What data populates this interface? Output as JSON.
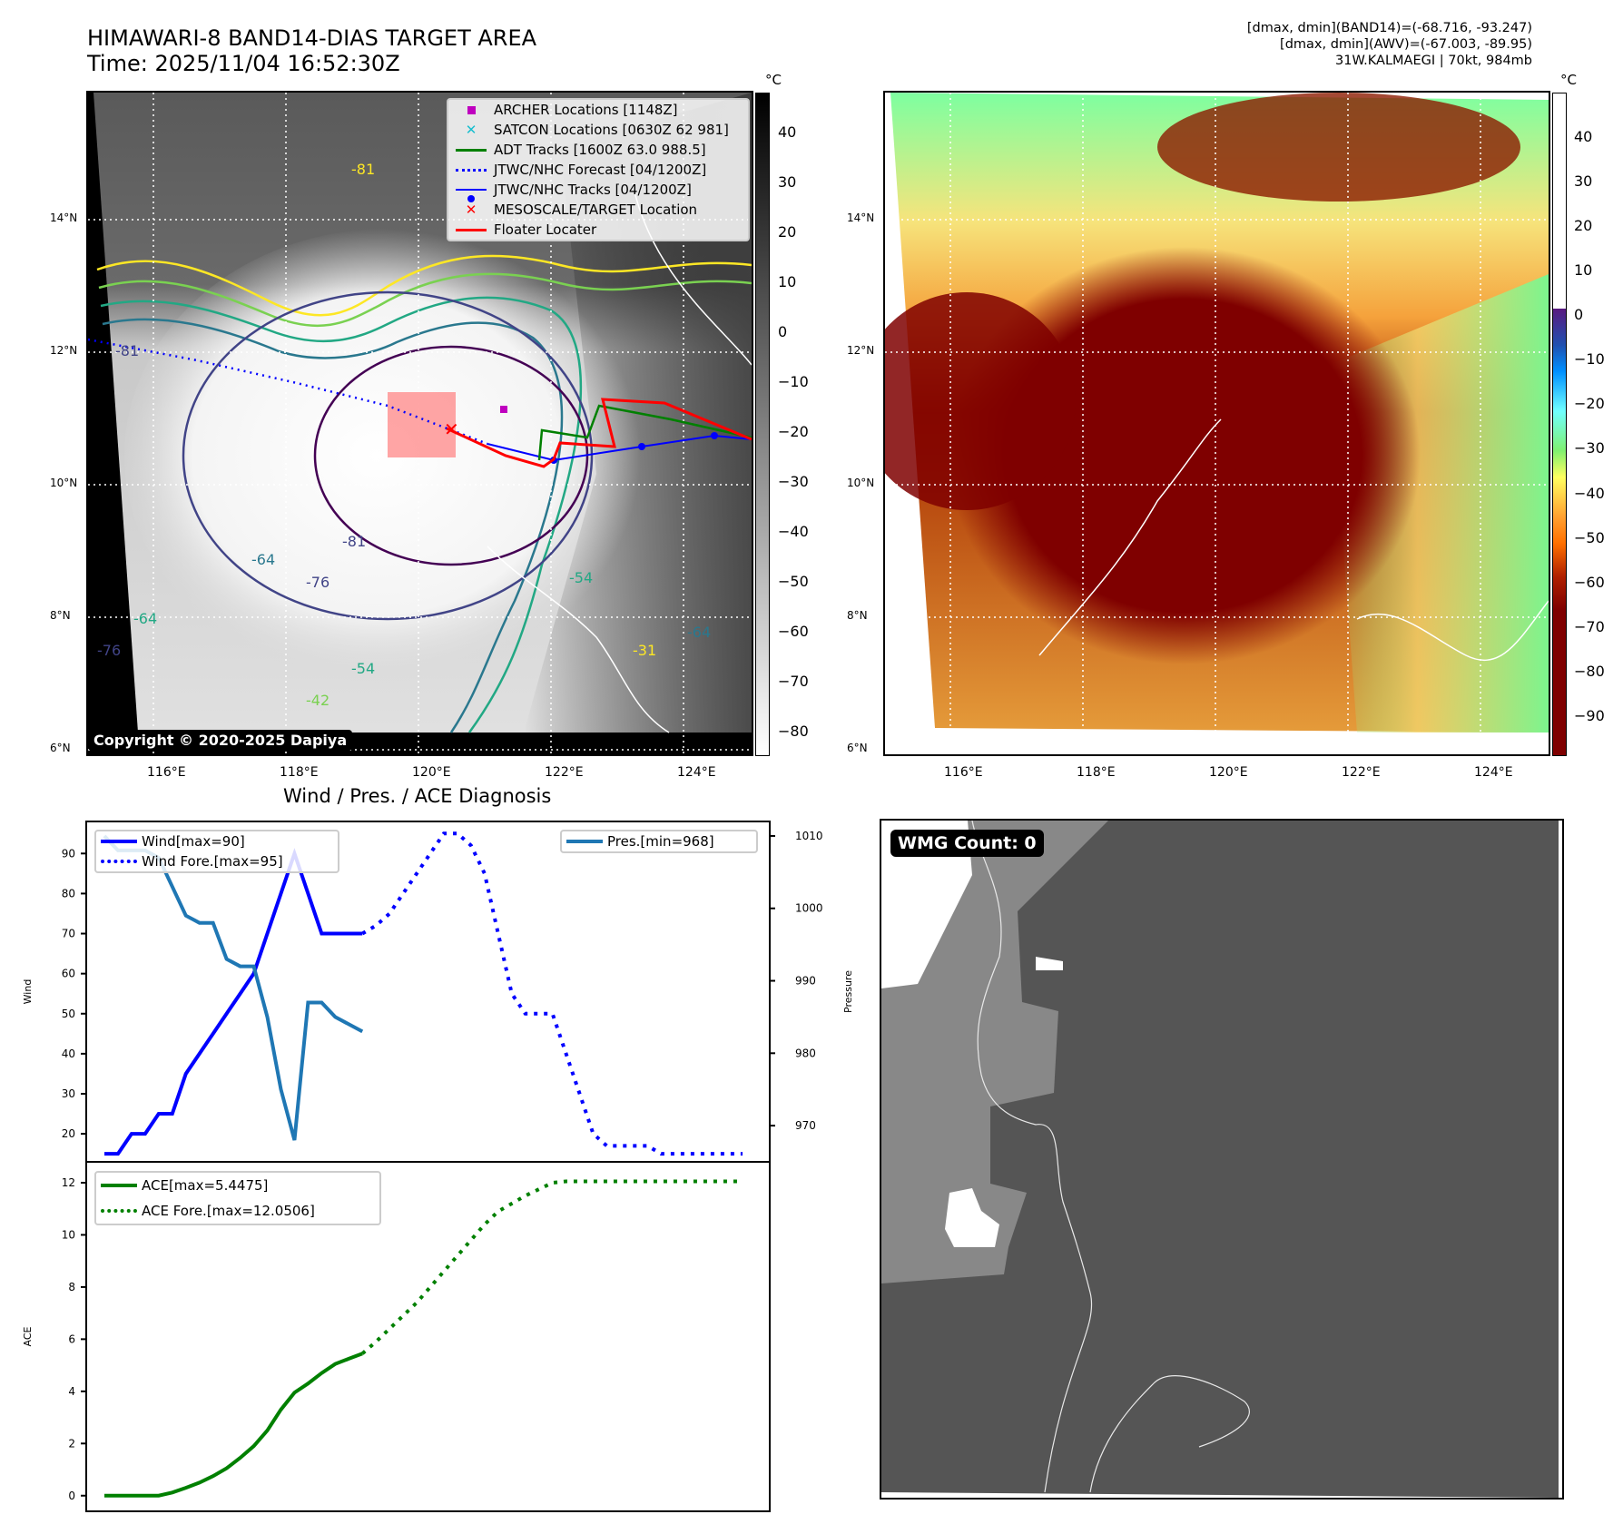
{
  "header": {
    "title_line1": "HIMAWARI-8 BAND14-DIAS TARGET AREA",
    "title_line2": "Time: 2025/11/04 16:52:30Z",
    "info_line1": "[dmax, dmin](BAND14)=(-68.716, -93.247)",
    "info_line2": "[dmax, dmin](AWV)=(-67.003, -89.95)",
    "info_line3": "31W.KALMAEGI | 70kt, 984mb"
  },
  "map_left": {
    "lat_ticks": [
      "14°N",
      "12°N",
      "10°N",
      "8°N",
      "6°N"
    ],
    "lon_ticks": [
      "116°E",
      "118°E",
      "120°E",
      "122°E",
      "124°E"
    ],
    "copyright": "Copyright © 2020-2025 Dapiya",
    "contour_labels": [
      "-81",
      "-81",
      "-64",
      "-76",
      "-81",
      "-64",
      "-76",
      "-54",
      "-42",
      "-54",
      "-31",
      "-64"
    ],
    "legend": [
      {
        "label": "ARCHER Locations [1148Z]",
        "color": "#bf00bf",
        "marker": "square"
      },
      {
        "label": "SATCON Locations [0630Z 62 981]",
        "color": "#17becf",
        "marker": "x"
      },
      {
        "label": "ADT Tracks [1600Z 63.0 988.5]",
        "color": "#008000",
        "marker": "line"
      },
      {
        "label": "JTWC/NHC Forecast [04/1200Z]",
        "color": "#0000ff",
        "marker": "dotted"
      },
      {
        "label": "JTWC/NHC Tracks [04/1200Z]",
        "color": "#0000ff",
        "marker": "line-dot"
      },
      {
        "label": "MESOSCALE/TARGET Location",
        "color": "#ff0000",
        "marker": "x"
      },
      {
        "label": "Floater Locater",
        "color": "#ff0000",
        "marker": "line"
      }
    ],
    "colorbar": {
      "unit": "°C",
      "ticks": [
        "40",
        "30",
        "20",
        "10",
        "0",
        "−10",
        "−20",
        "−30",
        "−40",
        "−50",
        "−60",
        "−70",
        "−80"
      ]
    }
  },
  "map_right": {
    "lat_ticks": [
      "14°N",
      "12°N",
      "10°N",
      "8°N",
      "6°N"
    ],
    "lon_ticks": [
      "116°E",
      "118°E",
      "120°E",
      "122°E",
      "124°E"
    ],
    "colorbar": {
      "unit": "°C",
      "ticks": [
        "40",
        "30",
        "20",
        "10",
        "0",
        "−10",
        "−20",
        "−30",
        "−40",
        "−50",
        "−60",
        "−70",
        "−80",
        "−90"
      ]
    }
  },
  "wmg_panel": {
    "label": "WMG Count: 0"
  },
  "chart_data": [
    {
      "type": "line",
      "title": "Wind / Pres. / ACE Diagnosis",
      "ylabel": "Wind",
      "ylabel_right": "Pressure",
      "ylim": [
        13,
        98
      ],
      "ylim_right": [
        965,
        1012
      ],
      "yticks": [
        "20",
        "30",
        "40",
        "50",
        "60",
        "70",
        "80",
        "90"
      ],
      "yticks_right": [
        "970",
        "980",
        "990",
        "1000",
        "1010"
      ],
      "series": [
        {
          "name": "Wind[max=90]",
          "color": "#0000ff",
          "style": "solid",
          "axis": "left",
          "x": [
            0,
            1,
            2,
            3,
            4,
            5,
            6,
            7,
            8,
            9,
            10,
            11,
            12,
            13,
            14,
            15,
            16,
            17,
            18,
            19
          ],
          "values": [
            15,
            15,
            20,
            20,
            25,
            25,
            35,
            40,
            45,
            50,
            55,
            60,
            70,
            80,
            90,
            80,
            70,
            70,
            70,
            70
          ]
        },
        {
          "name": "Wind Fore.[max=95]",
          "color": "#0000ff",
          "style": "dotted",
          "axis": "left",
          "x": [
            19,
            20,
            21,
            22,
            23,
            24,
            25,
            26,
            27,
            28,
            29,
            30,
            31,
            32,
            33,
            34,
            35,
            36,
            37,
            38,
            39,
            40,
            41,
            42,
            43,
            44,
            45,
            46,
            47
          ],
          "values": [
            70,
            72,
            75,
            80,
            85,
            90,
            95,
            95,
            92,
            85,
            70,
            55,
            50,
            50,
            50,
            40,
            30,
            20,
            17,
            17,
            17,
            17,
            15,
            15,
            15,
            15,
            15,
            15,
            15
          ]
        },
        {
          "name": "Pres.[min=968]",
          "color": "#1f77b4",
          "style": "solid",
          "axis": "right",
          "x": [
            0,
            1,
            2,
            3,
            4,
            5,
            6,
            7,
            8,
            9,
            10,
            11,
            12,
            13,
            14,
            15,
            16,
            17,
            18,
            19
          ],
          "values": [
            1010,
            1008,
            1008,
            1008,
            1007,
            1003,
            999,
            998,
            998,
            993,
            992,
            992,
            985,
            975,
            968,
            987,
            987,
            985,
            984,
            983
          ]
        }
      ]
    },
    {
      "type": "line",
      "ylabel": "ACE",
      "ylim": [
        -0.6,
        12.8
      ],
      "yticks": [
        "0",
        "2",
        "4",
        "6",
        "8",
        "10",
        "12"
      ],
      "series": [
        {
          "name": "ACE[max=5.4475]",
          "color": "#008000",
          "style": "solid",
          "x": [
            0,
            1,
            2,
            3,
            4,
            5,
            6,
            7,
            8,
            9,
            10,
            11,
            12,
            13,
            14,
            15,
            16,
            17,
            18,
            19
          ],
          "values": [
            0,
            0,
            0,
            0,
            0,
            0.12,
            0.3,
            0.5,
            0.75,
            1.05,
            1.45,
            1.9,
            2.5,
            3.3,
            3.95,
            4.3,
            4.7,
            5.05,
            5.25,
            5.4475
          ]
        },
        {
          "name": "ACE Fore.[max=12.0506]",
          "color": "#008000",
          "style": "dotted",
          "x": [
            19,
            20,
            21,
            22,
            23,
            24,
            25,
            26,
            27,
            28,
            29,
            30,
            31,
            32,
            33,
            34,
            35,
            36,
            37,
            38,
            39,
            40,
            41,
            42,
            43,
            44,
            45,
            46,
            47
          ],
          "values": [
            5.4475,
            5.9,
            6.4,
            6.9,
            7.4,
            8.0,
            8.6,
            9.2,
            9.8,
            10.4,
            10.9,
            11.2,
            11.5,
            11.75,
            12.0,
            12.05,
            12.05,
            12.05,
            12.05,
            12.05,
            12.05,
            12.05,
            12.05,
            12.05,
            12.05,
            12.05,
            12.05,
            12.05,
            12.05
          ]
        }
      ]
    }
  ]
}
